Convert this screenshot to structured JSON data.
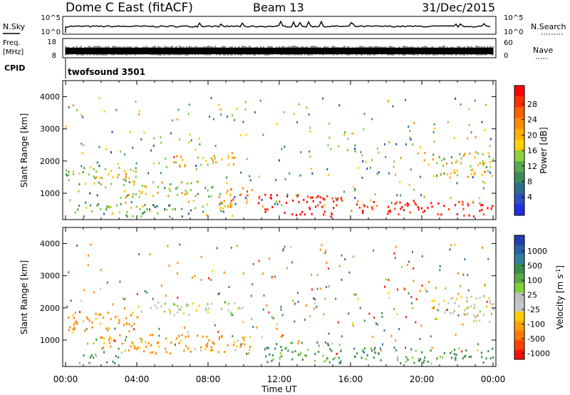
{
  "header": {
    "station": "Dome C East (fitACF)",
    "beam": "Beam 13",
    "date": "31/Dec/2015"
  },
  "left_labels": {
    "nsky": "N.Sky",
    "freq_line1": "Freq.",
    "freq_line2": "[MHz]",
    "cpid": "CPID"
  },
  "right_labels": {
    "nsearch": "N.Search",
    "nave": "Nave"
  },
  "strip_ticks": {
    "noise_top": "10^5",
    "noise_bottom": "10^0",
    "noise_right_top": "10^5",
    "noise_right_bottom": "10^0",
    "freq_top": "18",
    "freq_bottom": "8",
    "nave_top": "60",
    "nave_bottom": "0"
  },
  "cpid_text": "twofsound 3501",
  "colors": {
    "red": "#ff0000",
    "orange": "#ff8000",
    "yellow": "#ffcc00",
    "green": "#7fd23a",
    "darkgreen": "#3a8c4a",
    "blue": "#2a4fb0",
    "gray": "#bfbfbf"
  },
  "chart_data": [
    {
      "type": "heatmap",
      "title": "",
      "xlabel": "",
      "ylabel": "Slant Range [km]",
      "xlim": [
        "00:00",
        "24:00"
      ],
      "ylim": [
        180,
        4500
      ],
      "x_ticks": [
        "00:00",
        "04:00",
        "08:00",
        "12:00",
        "16:00",
        "20:00",
        "00:00"
      ],
      "y_ticks": [
        "1000",
        "2000",
        "3000",
        "4000"
      ],
      "colorbar_label": "Power [dB]",
      "colorbar_ticks": [
        "28",
        "24",
        "20",
        "16",
        "12",
        "8",
        "4"
      ],
      "colorbar_range": [
        0,
        30
      ],
      "regions": [
        {
          "t0": 0.0,
          "t1": 4.0,
          "r0": 1300,
          "r1": 1900,
          "value": 14
        },
        {
          "t0": 0.5,
          "t1": 9.5,
          "r0": 300,
          "r1": 700,
          "value": 12
        },
        {
          "t0": 3.0,
          "t1": 7.5,
          "r0": 900,
          "r1": 1400,
          "value": 16
        },
        {
          "t0": 5.5,
          "t1": 9.5,
          "r0": 1800,
          "r1": 2200,
          "value": 18
        },
        {
          "t0": 8.5,
          "t1": 10.5,
          "r0": 600,
          "r1": 1200,
          "value": 20
        },
        {
          "t0": 10.8,
          "t1": 15.5,
          "r0": 300,
          "r1": 1000,
          "value": 28
        },
        {
          "t0": 16.0,
          "t1": 17.5,
          "r0": 400,
          "r1": 900,
          "value": 24
        },
        {
          "t0": 18.0,
          "t1": 24.0,
          "r0": 300,
          "r1": 800,
          "value": 28
        },
        {
          "t0": 20.5,
          "t1": 24.0,
          "r0": 1500,
          "r1": 2300,
          "value": 16
        }
      ]
    },
    {
      "type": "heatmap",
      "title": "",
      "xlabel": "Time UT",
      "ylabel": "Slant Range [km]",
      "xlim": [
        "00:00",
        "24:00"
      ],
      "ylim": [
        180,
        4500
      ],
      "x_ticks": [
        "00:00",
        "04:00",
        "08:00",
        "12:00",
        "16:00",
        "20:00",
        "00:00"
      ],
      "y_ticks": [
        "1000",
        "2000",
        "3000",
        "4000"
      ],
      "colorbar_label": "Velocity [m s^-1]",
      "colorbar_ticks": [
        "1000",
        "500",
        "100",
        "25",
        "-25",
        "-100",
        "-500",
        "-1000"
      ],
      "regions": [
        {
          "t0": 0.0,
          "t1": 4.0,
          "r0": 1300,
          "r1": 1900,
          "value": -100
        },
        {
          "t0": 0.5,
          "t1": 3.0,
          "r0": 300,
          "r1": 600,
          "value": 100
        },
        {
          "t0": 2.0,
          "t1": 10.5,
          "r0": 600,
          "r1": 1200,
          "value": -100
        },
        {
          "t0": 4.0,
          "t1": 10.0,
          "r0": 1800,
          "r1": 2200,
          "value": 0
        },
        {
          "t0": 11.0,
          "t1": 15.5,
          "r0": 300,
          "r1": 1000,
          "value": 100
        },
        {
          "t0": 16.0,
          "t1": 18.0,
          "r0": 400,
          "r1": 900,
          "value": 100
        },
        {
          "t0": 18.5,
          "t1": 24.0,
          "r0": 300,
          "r1": 800,
          "value": 100
        },
        {
          "t0": 20.5,
          "t1": 24.0,
          "r0": 1600,
          "r1": 2400,
          "value": 0
        }
      ]
    }
  ]
}
